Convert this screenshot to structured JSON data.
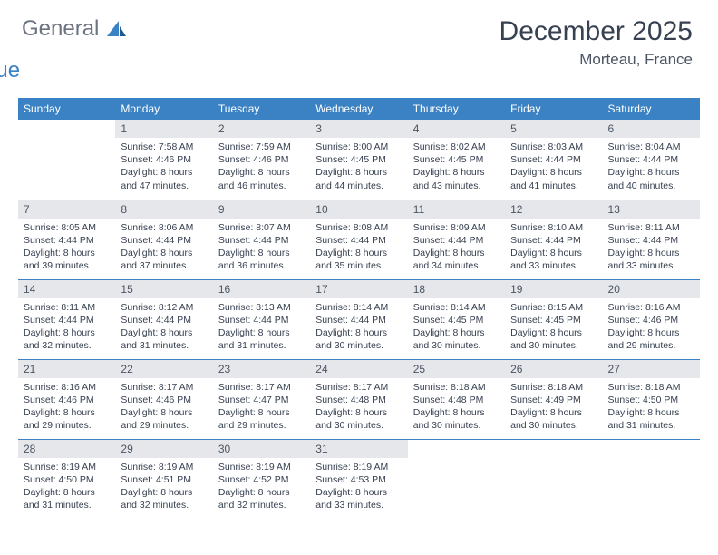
{
  "brand": {
    "general": "General",
    "blue": "Blue"
  },
  "title": "December 2025",
  "location": "Morteau, France",
  "colors": {
    "header_bg": "#3b82c4",
    "header_fg": "#ffffff",
    "daynum_bg": "#e5e7eb",
    "row_divider": "#3b82c4",
    "title_color": "#374151",
    "text_color": "#374151"
  },
  "day_headers": [
    "Sunday",
    "Monday",
    "Tuesday",
    "Wednesday",
    "Thursday",
    "Friday",
    "Saturday"
  ],
  "weeks": [
    [
      {
        "empty": true
      },
      {
        "num": "1",
        "sunrise": "7:58 AM",
        "sunset": "4:46 PM",
        "dl1": "Daylight: 8 hours",
        "dl2": "and 47 minutes."
      },
      {
        "num": "2",
        "sunrise": "7:59 AM",
        "sunset": "4:46 PM",
        "dl1": "Daylight: 8 hours",
        "dl2": "and 46 minutes."
      },
      {
        "num": "3",
        "sunrise": "8:00 AM",
        "sunset": "4:45 PM",
        "dl1": "Daylight: 8 hours",
        "dl2": "and 44 minutes."
      },
      {
        "num": "4",
        "sunrise": "8:02 AM",
        "sunset": "4:45 PM",
        "dl1": "Daylight: 8 hours",
        "dl2": "and 43 minutes."
      },
      {
        "num": "5",
        "sunrise": "8:03 AM",
        "sunset": "4:44 PM",
        "dl1": "Daylight: 8 hours",
        "dl2": "and 41 minutes."
      },
      {
        "num": "6",
        "sunrise": "8:04 AM",
        "sunset": "4:44 PM",
        "dl1": "Daylight: 8 hours",
        "dl2": "and 40 minutes."
      }
    ],
    [
      {
        "num": "7",
        "sunrise": "8:05 AM",
        "sunset": "4:44 PM",
        "dl1": "Daylight: 8 hours",
        "dl2": "and 39 minutes."
      },
      {
        "num": "8",
        "sunrise": "8:06 AM",
        "sunset": "4:44 PM",
        "dl1": "Daylight: 8 hours",
        "dl2": "and 37 minutes."
      },
      {
        "num": "9",
        "sunrise": "8:07 AM",
        "sunset": "4:44 PM",
        "dl1": "Daylight: 8 hours",
        "dl2": "and 36 minutes."
      },
      {
        "num": "10",
        "sunrise": "8:08 AM",
        "sunset": "4:44 PM",
        "dl1": "Daylight: 8 hours",
        "dl2": "and 35 minutes."
      },
      {
        "num": "11",
        "sunrise": "8:09 AM",
        "sunset": "4:44 PM",
        "dl1": "Daylight: 8 hours",
        "dl2": "and 34 minutes."
      },
      {
        "num": "12",
        "sunrise": "8:10 AM",
        "sunset": "4:44 PM",
        "dl1": "Daylight: 8 hours",
        "dl2": "and 33 minutes."
      },
      {
        "num": "13",
        "sunrise": "8:11 AM",
        "sunset": "4:44 PM",
        "dl1": "Daylight: 8 hours",
        "dl2": "and 33 minutes."
      }
    ],
    [
      {
        "num": "14",
        "sunrise": "8:11 AM",
        "sunset": "4:44 PM",
        "dl1": "Daylight: 8 hours",
        "dl2": "and 32 minutes."
      },
      {
        "num": "15",
        "sunrise": "8:12 AM",
        "sunset": "4:44 PM",
        "dl1": "Daylight: 8 hours",
        "dl2": "and 31 minutes."
      },
      {
        "num": "16",
        "sunrise": "8:13 AM",
        "sunset": "4:44 PM",
        "dl1": "Daylight: 8 hours",
        "dl2": "and 31 minutes."
      },
      {
        "num": "17",
        "sunrise": "8:14 AM",
        "sunset": "4:44 PM",
        "dl1": "Daylight: 8 hours",
        "dl2": "and 30 minutes."
      },
      {
        "num": "18",
        "sunrise": "8:14 AM",
        "sunset": "4:45 PM",
        "dl1": "Daylight: 8 hours",
        "dl2": "and 30 minutes."
      },
      {
        "num": "19",
        "sunrise": "8:15 AM",
        "sunset": "4:45 PM",
        "dl1": "Daylight: 8 hours",
        "dl2": "and 30 minutes."
      },
      {
        "num": "20",
        "sunrise": "8:16 AM",
        "sunset": "4:46 PM",
        "dl1": "Daylight: 8 hours",
        "dl2": "and 29 minutes."
      }
    ],
    [
      {
        "num": "21",
        "sunrise": "8:16 AM",
        "sunset": "4:46 PM",
        "dl1": "Daylight: 8 hours",
        "dl2": "and 29 minutes."
      },
      {
        "num": "22",
        "sunrise": "8:17 AM",
        "sunset": "4:46 PM",
        "dl1": "Daylight: 8 hours",
        "dl2": "and 29 minutes."
      },
      {
        "num": "23",
        "sunrise": "8:17 AM",
        "sunset": "4:47 PM",
        "dl1": "Daylight: 8 hours",
        "dl2": "and 29 minutes."
      },
      {
        "num": "24",
        "sunrise": "8:17 AM",
        "sunset": "4:48 PM",
        "dl1": "Daylight: 8 hours",
        "dl2": "and 30 minutes."
      },
      {
        "num": "25",
        "sunrise": "8:18 AM",
        "sunset": "4:48 PM",
        "dl1": "Daylight: 8 hours",
        "dl2": "and 30 minutes."
      },
      {
        "num": "26",
        "sunrise": "8:18 AM",
        "sunset": "4:49 PM",
        "dl1": "Daylight: 8 hours",
        "dl2": "and 30 minutes."
      },
      {
        "num": "27",
        "sunrise": "8:18 AM",
        "sunset": "4:50 PM",
        "dl1": "Daylight: 8 hours",
        "dl2": "and 31 minutes."
      }
    ],
    [
      {
        "num": "28",
        "sunrise": "8:19 AM",
        "sunset": "4:50 PM",
        "dl1": "Daylight: 8 hours",
        "dl2": "and 31 minutes."
      },
      {
        "num": "29",
        "sunrise": "8:19 AM",
        "sunset": "4:51 PM",
        "dl1": "Daylight: 8 hours",
        "dl2": "and 32 minutes."
      },
      {
        "num": "30",
        "sunrise": "8:19 AM",
        "sunset": "4:52 PM",
        "dl1": "Daylight: 8 hours",
        "dl2": "and 32 minutes."
      },
      {
        "num": "31",
        "sunrise": "8:19 AM",
        "sunset": "4:53 PM",
        "dl1": "Daylight: 8 hours",
        "dl2": "and 33 minutes."
      },
      {
        "empty": true
      },
      {
        "empty": true
      },
      {
        "empty": true
      }
    ]
  ],
  "labels": {
    "sunrise": "Sunrise:",
    "sunset": "Sunset:"
  }
}
